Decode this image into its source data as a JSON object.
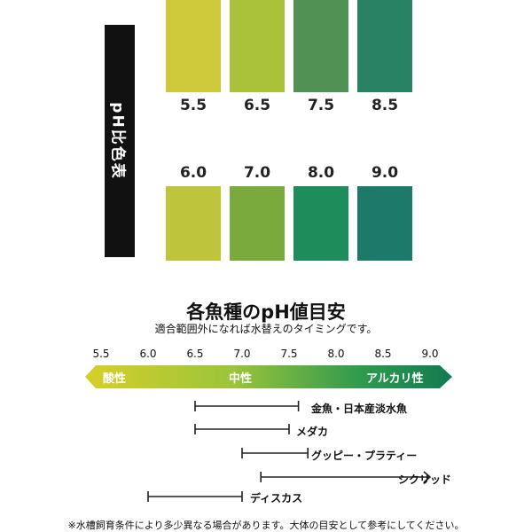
{
  "sidebar": {
    "label": "pH比色表"
  },
  "swatches_top": [
    {
      "value": "5.5",
      "color": "#cec93a"
    },
    {
      "value": "6.5",
      "color": "#a9c23a"
    },
    {
      "value": "7.5",
      "color": "#4f9254"
    },
    {
      "value": "8.5",
      "color": "#2a8265"
    }
  ],
  "swatches_bottom": [
    {
      "value": "6.0",
      "color": "#bdc53a"
    },
    {
      "value": "7.0",
      "color": "#7aa93e"
    },
    {
      "value": "8.0",
      "color": "#1f8c5c"
    },
    {
      "value": "9.0",
      "color": "#1e7a68"
    }
  ],
  "guide": {
    "title": "各魚種のpH値目安",
    "subtitle": "適合範囲外になれば水替えのタイミングです。",
    "ticks": [
      "5.5",
      "6.0",
      "6.5",
      "7.0",
      "7.5",
      "8.0",
      "8.5",
      "9.0"
    ],
    "band": {
      "acid": "酸性",
      "neutral": "中性",
      "alkali": "アルカリ性",
      "colors": [
        "#d6cf2a",
        "#9cc43a",
        "#2f9a4e",
        "#137a52"
      ]
    },
    "fish": [
      {
        "name": "金魚・日本産淡水魚",
        "min": 6.5,
        "max": 7.6,
        "open_end": false
      },
      {
        "name": "メダカ",
        "min": 6.5,
        "max": 7.5,
        "open_end": false
      },
      {
        "name": "グッピー・プラティー",
        "min": 7.0,
        "max": 7.7,
        "open_end": false
      },
      {
        "name": "シクリッド",
        "min": 7.2,
        "max": 9.0,
        "open_end": true
      },
      {
        "name": "ディスカス",
        "min": 6.0,
        "max": 7.0,
        "open_end": false
      }
    ]
  },
  "footnote": "※水槽飼育条件により多少異なる場合があります。大体の目安として参考にしてください。"
}
